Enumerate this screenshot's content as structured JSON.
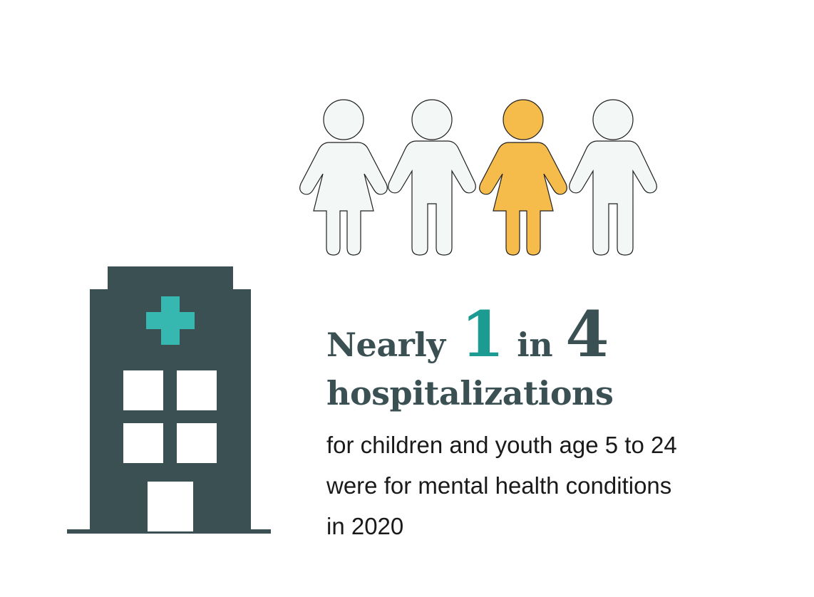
{
  "colors": {
    "dark_slate": "#3a5053",
    "teal_accent": "#1b9b91",
    "cross": "#36b8b0",
    "figure_default": "#f3f7f6",
    "figure_highlight": "#f6bc4b",
    "outline": "#1f1f1f"
  },
  "figures": {
    "total": 4,
    "highlighted_index": 3,
    "ratio": "1 in 4",
    "icon_names": [
      "girl-icon",
      "boy-icon",
      "girl-icon-highlighted",
      "boy-icon"
    ]
  },
  "headline": {
    "prefix": "Nearly",
    "numerator": "1",
    "connector": "in",
    "denominator": "4",
    "subject": "hospitalizations"
  },
  "body": {
    "line1": "for children and youth age 5 to 24",
    "line2": "were for mental health conditions",
    "line3": "in 2020"
  },
  "building_icon": "hospital-building-icon"
}
